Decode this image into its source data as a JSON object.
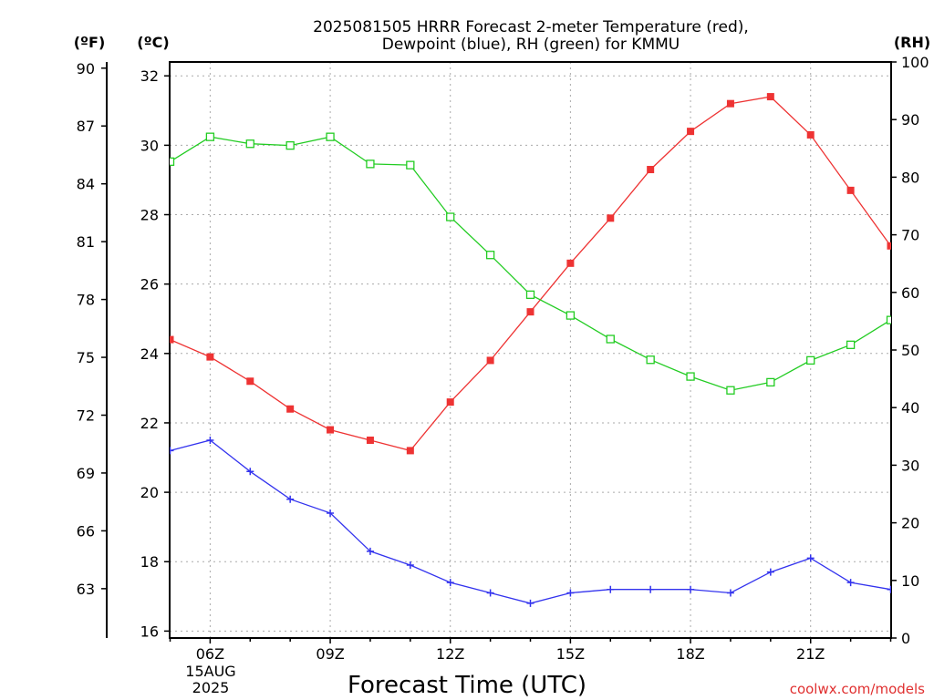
{
  "chart_data": {
    "type": "line",
    "title": [
      "2025081505 HRRR Forecast 2-meter Temperature (red),",
      "Dewpoint (blue), RH (green) for KMMU"
    ],
    "xlabel": "Forecast Time (UTC)",
    "date_label": [
      "15AUG",
      "2025"
    ],
    "units": {
      "fahrenheit": "(ºF)",
      "celsius": "(ºC)",
      "rh": "(RH)"
    },
    "credit": "coolwx.com/models",
    "x": [
      "05Z",
      "06Z",
      "07Z",
      "08Z",
      "09Z",
      "10Z",
      "11Z",
      "12Z",
      "13Z",
      "14Z",
      "15Z",
      "16Z",
      "17Z",
      "18Z",
      "19Z",
      "20Z",
      "21Z",
      "22Z",
      "23Z"
    ],
    "x_tick_labels": [
      "",
      "06Z",
      "",
      "",
      "09Z",
      "",
      "",
      "12Z",
      "",
      "",
      "15Z",
      "",
      "",
      "18Z",
      "",
      "",
      "21Z",
      "",
      ""
    ],
    "ylim_c": [
      15.8,
      32.4
    ],
    "ylim_rh": [
      0,
      100
    ],
    "celsius_ticks": [
      16,
      18,
      20,
      22,
      24,
      26,
      28,
      30,
      32
    ],
    "fahrenheit_ticks": [
      63,
      66,
      69,
      72,
      75,
      78,
      81,
      84,
      87,
      90
    ],
    "rh_ticks": [
      0,
      10,
      20,
      30,
      40,
      50,
      60,
      70,
      80,
      90,
      100
    ],
    "grid": true,
    "series": [
      {
        "name": "Temperature",
        "axis": "c",
        "color": "#ee3333",
        "marker": "filled-square",
        "values": [
          24.4,
          23.9,
          23.2,
          22.4,
          21.8,
          21.5,
          21.2,
          22.6,
          23.8,
          25.2,
          26.6,
          27.9,
          29.3,
          30.4,
          31.2,
          31.4,
          30.3,
          28.7,
          27.1
        ]
      },
      {
        "name": "Dewpoint",
        "axis": "c",
        "color": "#3333ee",
        "marker": "plus",
        "values": [
          21.2,
          21.5,
          20.6,
          19.8,
          19.4,
          18.3,
          17.9,
          17.4,
          17.1,
          16.8,
          17.1,
          17.2,
          17.2,
          17.2,
          17.1,
          17.7,
          18.1,
          17.4,
          17.2
        ]
      },
      {
        "name": "RH",
        "axis": "rh",
        "color": "#22cc22",
        "marker": "open-square",
        "values": [
          82.7,
          87.0,
          85.8,
          85.5,
          87.0,
          82.3,
          82.1,
          73.1,
          66.5,
          59.6,
          56.0,
          51.9,
          48.3,
          45.4,
          43.0,
          44.4,
          48.2,
          50.9,
          55.2
        ]
      }
    ]
  }
}
